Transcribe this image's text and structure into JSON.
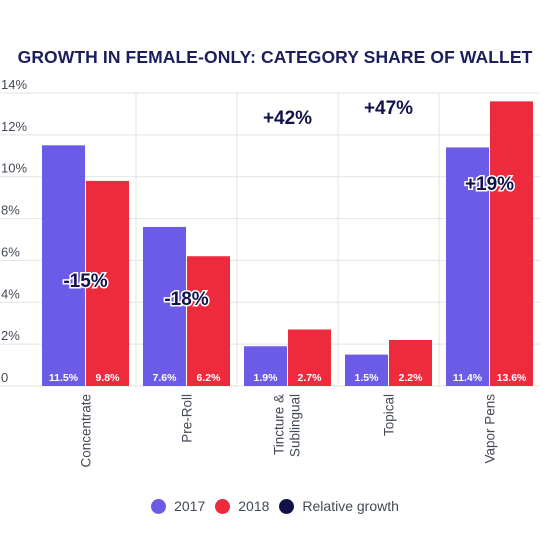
{
  "chart_data": {
    "type": "bar",
    "title": "GROWTH IN FEMALE-ONLY: CATEGORY SHARE OF WALLET",
    "xlabel": "",
    "ylabel": "",
    "ylim": [
      0,
      14
    ],
    "yticks": [
      0,
      2,
      4,
      6,
      8,
      10,
      12,
      14
    ],
    "ytick_labels": [
      "0",
      "2%",
      "4%",
      "6%",
      "8%",
      "10%",
      "12%",
      "14%"
    ],
    "grid": true,
    "legend_position": "bottom",
    "categories": [
      "Concentrate",
      "Pre-Roll",
      "Tincture & Sublingual",
      "Topical",
      "Vapor Pens"
    ],
    "category_labels": [
      [
        "Concentrate"
      ],
      [
        "Pre-Roll"
      ],
      [
        "Tincture &",
        "Sublingual"
      ],
      [
        "Topical"
      ],
      [
        "Vapor Pens"
      ]
    ],
    "series": [
      {
        "name": "2017",
        "color": "#6b5be6",
        "values": [
          11.5,
          7.6,
          1.9,
          1.5,
          11.4
        ],
        "labels": [
          "11.5%",
          "7.6%",
          "1.9%",
          "1.5%",
          "11.4%"
        ]
      },
      {
        "name": "2018",
        "color": "#ee2a3d",
        "values": [
          9.8,
          6.2,
          2.7,
          2.2,
          13.6
        ],
        "labels": [
          "9.8%",
          "6.2%",
          "2.7%",
          "2.2%",
          "13.6%"
        ]
      }
    ],
    "relative_growth": {
      "name": "Relative growth",
      "color": "#12124a",
      "labels": [
        "-15%",
        "-18%",
        "+42%",
        "+47%",
        "+19%"
      ]
    }
  }
}
